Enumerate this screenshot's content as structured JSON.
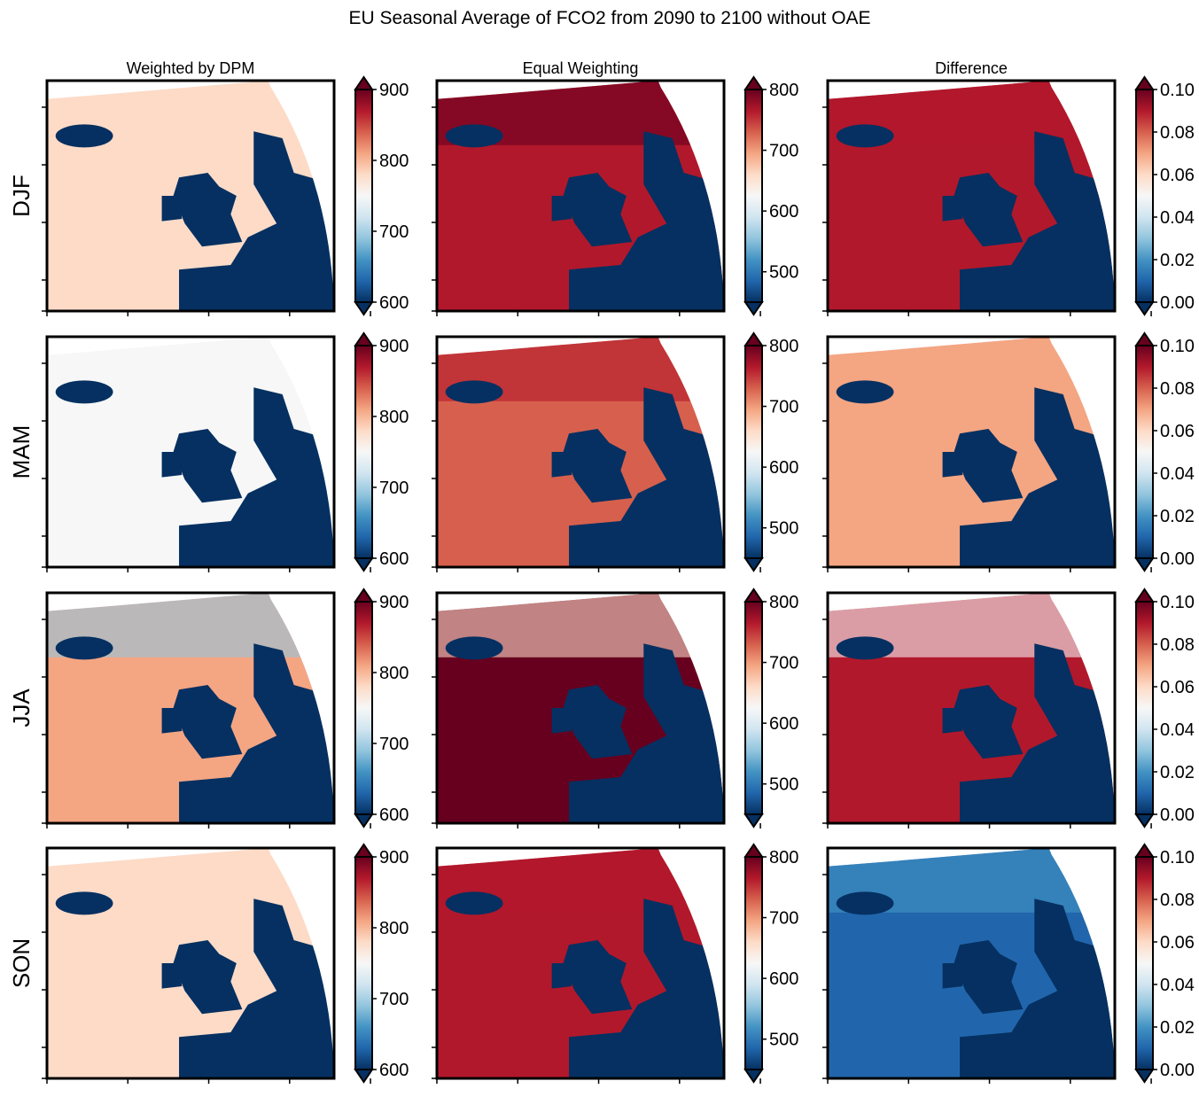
{
  "figure": {
    "title": "EU Seasonal Average of FCO2 from 2090 to 2100 without OAE"
  },
  "chart_data": {
    "type": "heatmap",
    "title": "EU Seasonal Average of FCO2 from 2090 to 2100 without OAE",
    "rows": [
      "DJF",
      "MAM",
      "JJA",
      "SON"
    ],
    "columns": [
      "Weighted by DPM",
      "Equal Weighting",
      "Difference"
    ],
    "colormap": "RdBu_r",
    "colorbar_extend": "both",
    "colorbars": [
      {
        "column": "Weighted by DPM",
        "vmin": 600,
        "vmax": 900,
        "ticks": [
          600,
          700,
          800,
          900
        ],
        "tick_labels": [
          "600",
          "700",
          "800",
          "900"
        ]
      },
      {
        "column": "Equal Weighting",
        "vmin": 450,
        "vmax": 800,
        "ticks": [
          500,
          600,
          700,
          800
        ],
        "tick_labels": [
          "500",
          "600",
          "700",
          "800"
        ]
      },
      {
        "column": "Difference",
        "vmin": 0.0,
        "vmax": 0.1,
        "ticks": [
          0.0,
          0.02,
          0.04,
          0.06,
          0.08,
          0.1
        ],
        "tick_labels": [
          "0.00",
          "0.02",
          "0.04",
          "0.06",
          "0.08",
          "0.10"
        ]
      }
    ],
    "panel_tone": [
      [
        0.55,
        0.88,
        0.85
      ],
      [
        0.45,
        0.8,
        0.65
      ],
      [
        0.65,
        0.95,
        0.85
      ],
      [
        0.55,
        0.85,
        0.1
      ]
    ],
    "mask_color": "#053061",
    "grid": false,
    "axis_tick_labels": false
  }
}
